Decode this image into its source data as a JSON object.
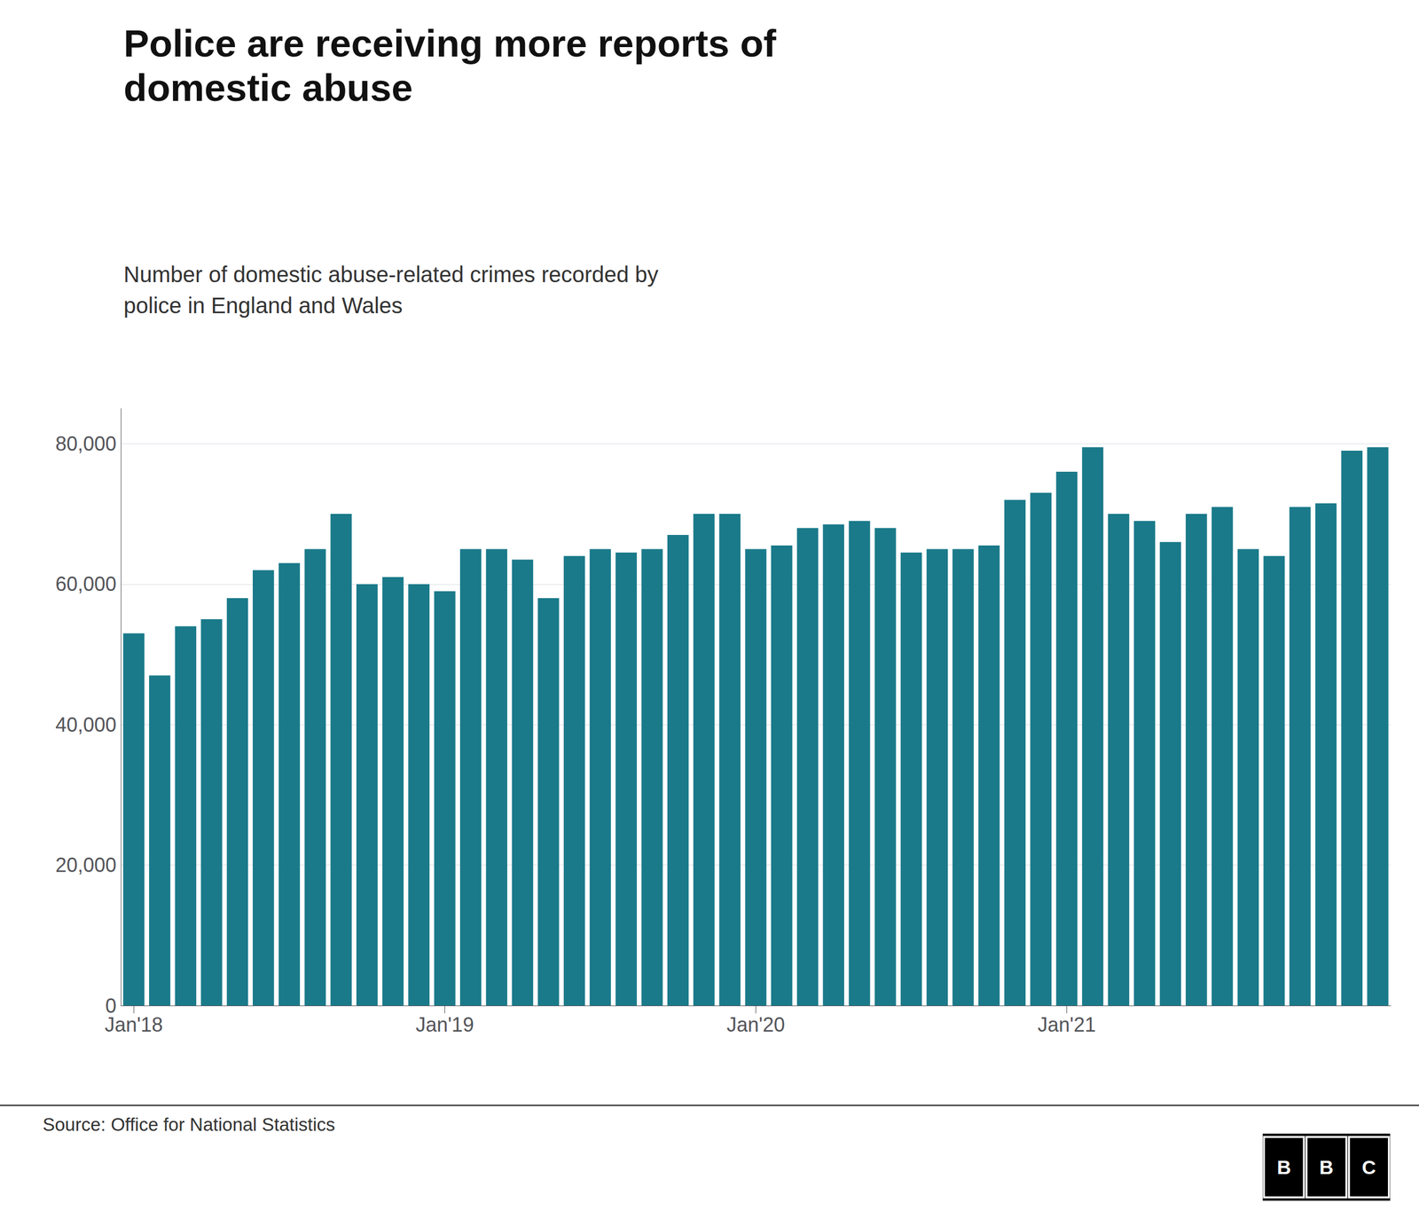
{
  "chart_data": {
    "type": "bar",
    "title": "Police are receiving more reports of\ndomestic abuse",
    "subtitle": "Number of domestic abuse-related crimes recorded by\npolice in England and Wales",
    "source": "Source: Office for National Statistics",
    "annotations": [
      "B",
      "B",
      "C"
    ],
    "categories": [
      "Jan'18",
      null,
      null,
      null,
      null,
      null,
      null,
      null,
      null,
      null,
      null,
      null,
      "Jan'19",
      null,
      null,
      null,
      null,
      null,
      null,
      null,
      null,
      null,
      null,
      null,
      "Jan'20",
      null,
      null,
      null,
      null,
      null,
      null,
      null,
      null,
      null,
      null,
      null,
      "Jan'21",
      null,
      null,
      null,
      null,
      null,
      null,
      null,
      null,
      null,
      null,
      null,
      null
    ],
    "values": [
      53000,
      47000,
      54000,
      55000,
      58000,
      62000,
      63000,
      65000,
      70000,
      60000,
      61000,
      60000,
      59000,
      65000,
      65000,
      63500,
      58000,
      64000,
      65000,
      64500,
      65000,
      67000,
      70000,
      70000,
      65000,
      65500,
      68000,
      68500,
      69000,
      68000,
      64500,
      65000,
      65000,
      65500,
      72000,
      73000,
      76000,
      79500,
      70000,
      69000,
      66000,
      70000,
      71000,
      65000,
      64000,
      71000,
      71500,
      79000,
      79500
    ],
    "color": "#1a7a8a",
    "ylim": [
      0,
      85000
    ],
    "yticks": [
      0,
      {
        "value": 20000,
        "label": "20,000"
      },
      {
        "value": 40000,
        "label": "40,000"
      },
      {
        "value": 60000,
        "label": "60,000"
      },
      {
        "value": 80000,
        "label": "80,000"
      }
    ],
    "grid": true
  }
}
